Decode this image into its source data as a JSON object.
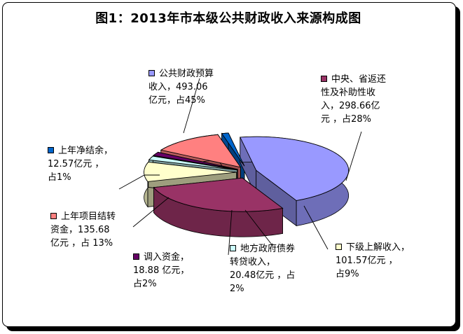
{
  "chart_data": {
    "type": "pie",
    "title": "图1：2013年市本级公共财政收入来源构成图",
    "unit": "亿元",
    "slices": [
      {
        "name": "公共财政预算收入",
        "value": 493.06,
        "percent": 45,
        "color": "#9999FF",
        "lines": [
          "公共财政预算",
          "收入，493.06",
          "亿元，占45%"
        ]
      },
      {
        "name": "中央、省返还性及补助性收入",
        "value": 298.66,
        "percent": 28,
        "color": "#993366",
        "lines": [
          "中央、省返还",
          "性及补助性收",
          "入，298.66亿",
          "元 ，占28%"
        ]
      },
      {
        "name": "下级上解收入",
        "value": 101.57,
        "percent": 9,
        "color": "#FFFFCC",
        "lines": [
          "下级上解收入，",
          "101.57亿元 ，",
          "占9%"
        ]
      },
      {
        "name": "地方政府债券转贷收入",
        "value": 20.48,
        "percent": 2,
        "color": "#CCFFFF",
        "lines": [
          "地方政府债券",
          "转贷收入，",
          "20.48亿元 ，占",
          "2%"
        ]
      },
      {
        "name": "调入资金",
        "value": 18.88,
        "percent": 2,
        "color": "#660066",
        "lines": [
          "调入资金，",
          "18.88 亿元，",
          "占2%"
        ]
      },
      {
        "name": "上年项目结转资金",
        "value": 135.68,
        "percent": 13,
        "color": "#FF8080",
        "lines": [
          "上年项目结转",
          "资金，135.68",
          "亿元 ，占 13%"
        ]
      },
      {
        "name": "上年净结余",
        "value": 12.57,
        "percent": 1,
        "color": "#0066CC",
        "lines": [
          "上年净结余，",
          "12.57亿元 ，",
          "占1%"
        ]
      }
    ]
  }
}
